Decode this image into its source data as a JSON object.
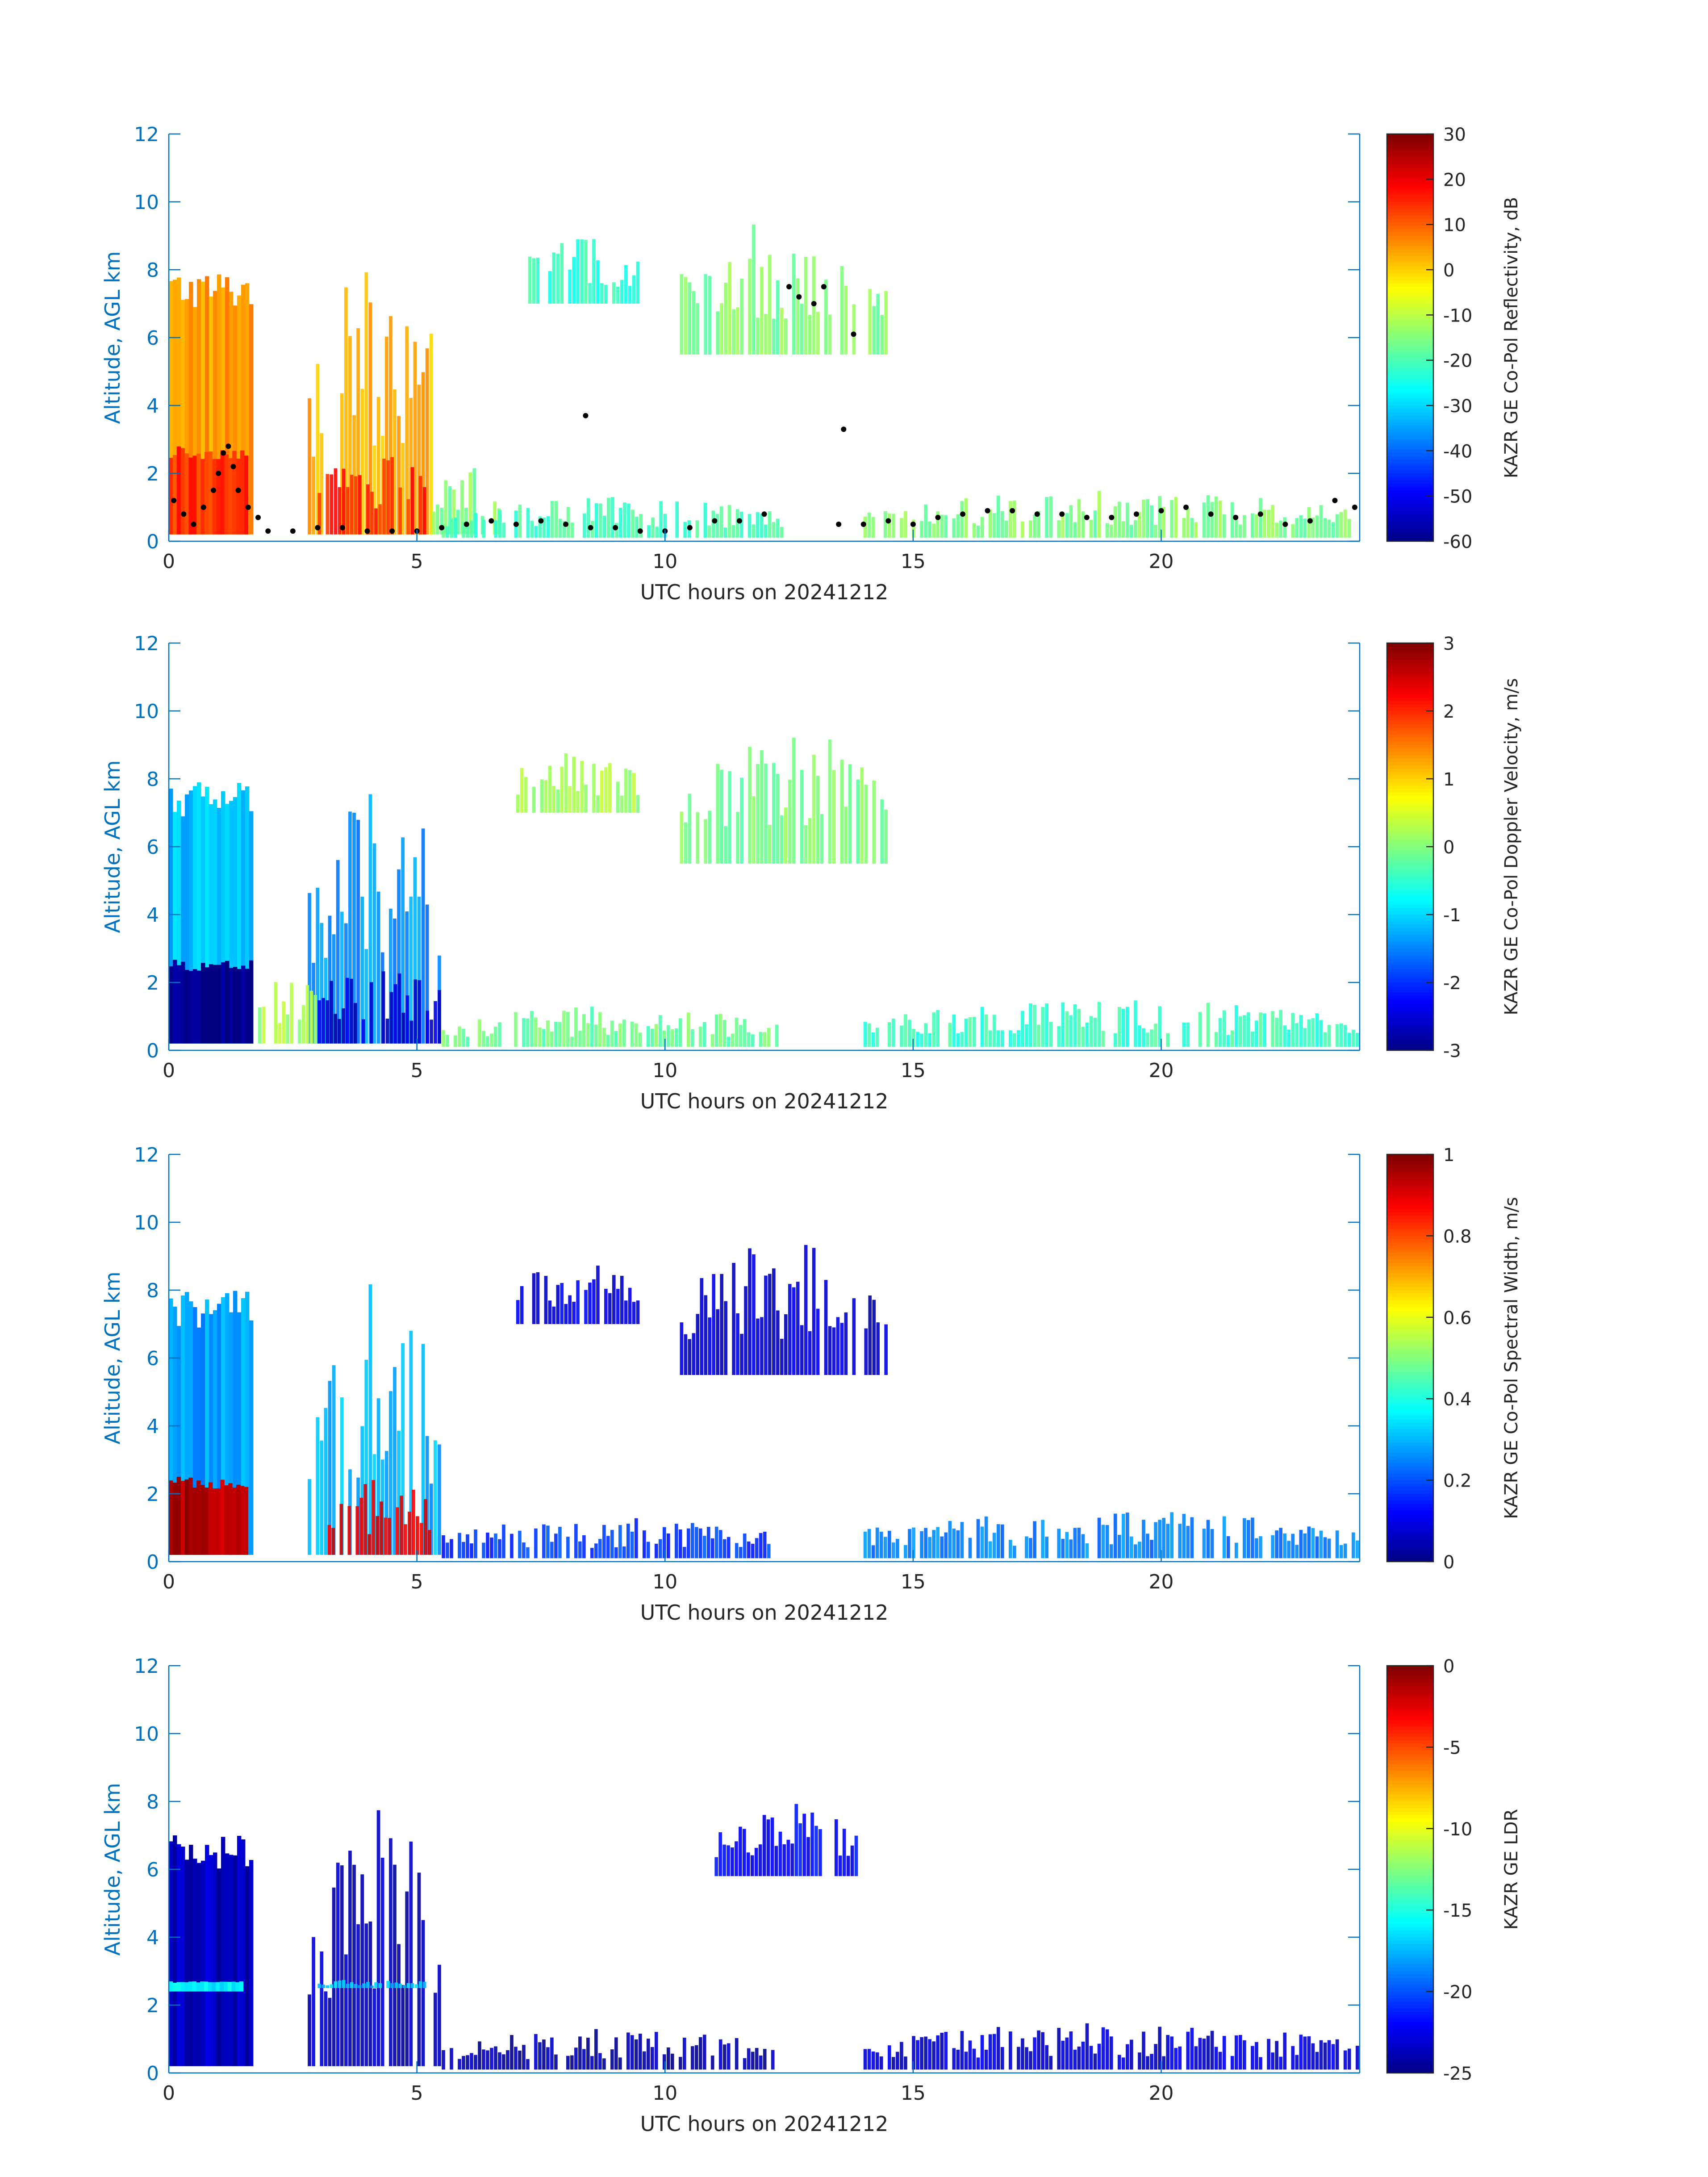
{
  "chart_data": [
    {
      "type": "heatmap",
      "xlabel": "UTC hours on 20241212",
      "ylabel": "Altitude, AGL km",
      "xlim": [
        0,
        24
      ],
      "ylim": [
        0,
        12
      ],
      "xticks": [
        "0",
        "5",
        "10",
        "15",
        "20"
      ],
      "yticks": [
        "0",
        "2",
        "4",
        "6",
        "8",
        "10",
        "12"
      ],
      "colorbar": {
        "label": "KAZR GE Co-Pol Reflectivity, dB",
        "range": [
          -60,
          30
        ],
        "ticks": [
          "30",
          "20",
          "10",
          "0",
          "-10",
          "-20",
          "-30",
          "-40",
          "-50",
          "-60"
        ],
        "colormap": "jet"
      },
      "regions": [
        {
          "x0": 0.0,
          "x1": 1.7,
          "y0": 0.2,
          "y1": 8.0,
          "value": 5,
          "dense": true
        },
        {
          "x0": 0.0,
          "x1": 1.6,
          "y0": 0.2,
          "y1": 2.8,
          "value": 14,
          "dense": true
        },
        {
          "x0": 2.8,
          "x1": 5.5,
          "y0": 0.2,
          "y1": 8.3,
          "value": 3,
          "dense": false
        },
        {
          "x0": 3.0,
          "x1": 5.2,
          "y0": 0.2,
          "y1": 2.8,
          "value": 16,
          "dense": false
        },
        {
          "x0": 5.3,
          "x1": 6.7,
          "y0": 0.2,
          "y1": 2.2,
          "value": -15,
          "dense": false
        },
        {
          "x0": 5.5,
          "x1": 12.4,
          "y0": 0.1,
          "y1": 1.3,
          "value": -20,
          "dense": false
        },
        {
          "x0": 7.0,
          "x1": 9.5,
          "y0": 7.0,
          "y1": 9.0,
          "value": -22,
          "dense": false
        },
        {
          "x0": 10.3,
          "x1": 14.5,
          "y0": 5.5,
          "y1": 9.5,
          "value": -15,
          "dense": false
        },
        {
          "x0": 14.0,
          "x1": 24.0,
          "y0": 0.1,
          "y1": 1.5,
          "value": -15,
          "dense": false
        }
      ],
      "points": [
        [
          0.1,
          1.2
        ],
        [
          0.3,
          0.8
        ],
        [
          0.5,
          0.5
        ],
        [
          0.7,
          1.0
        ],
        [
          0.9,
          1.5
        ],
        [
          1.0,
          2.0
        ],
        [
          1.1,
          2.6
        ],
        [
          1.2,
          2.8
        ],
        [
          1.3,
          2.2
        ],
        [
          1.4,
          1.5
        ],
        [
          1.6,
          1.0
        ],
        [
          1.8,
          0.7
        ],
        [
          2.0,
          0.3
        ],
        [
          2.5,
          0.3
        ],
        [
          3.0,
          0.4
        ],
        [
          3.5,
          0.4
        ],
        [
          4.0,
          0.3
        ],
        [
          4.5,
          0.3
        ],
        [
          5.0,
          0.3
        ],
        [
          5.5,
          0.4
        ],
        [
          6.0,
          0.5
        ],
        [
          6.5,
          0.6
        ],
        [
          7.0,
          0.5
        ],
        [
          7.5,
          0.6
        ],
        [
          8.0,
          0.5
        ],
        [
          8.4,
          3.7
        ],
        [
          8.5,
          0.4
        ],
        [
          9.0,
          0.4
        ],
        [
          9.5,
          0.3
        ],
        [
          10.0,
          0.3
        ],
        [
          10.5,
          0.4
        ],
        [
          11.0,
          0.6
        ],
        [
          11.5,
          0.6
        ],
        [
          12.0,
          0.8
        ],
        [
          12.5,
          7.5
        ],
        [
          12.7,
          7.2
        ],
        [
          13.0,
          7.0
        ],
        [
          13.2,
          7.5
        ],
        [
          13.5,
          0.5
        ],
        [
          13.6,
          3.3
        ],
        [
          13.8,
          6.1
        ],
        [
          14.0,
          0.5
        ],
        [
          14.5,
          0.6
        ],
        [
          15.0,
          0.5
        ],
        [
          15.5,
          0.7
        ],
        [
          16.0,
          0.8
        ],
        [
          16.5,
          0.9
        ],
        [
          17.0,
          0.9
        ],
        [
          17.5,
          0.8
        ],
        [
          18.0,
          0.8
        ],
        [
          18.5,
          0.7
        ],
        [
          19.0,
          0.7
        ],
        [
          19.5,
          0.8
        ],
        [
          20.0,
          0.9
        ],
        [
          20.5,
          1.0
        ],
        [
          21.0,
          0.8
        ],
        [
          21.5,
          0.7
        ],
        [
          22.0,
          0.8
        ],
        [
          22.5,
          0.5
        ],
        [
          23.0,
          0.6
        ],
        [
          23.5,
          1.2
        ],
        [
          23.9,
          1.0
        ]
      ]
    },
    {
      "type": "heatmap",
      "xlabel": "UTC hours on 20241212",
      "ylabel": "Altitude, AGL km",
      "xlim": [
        0,
        24
      ],
      "ylim": [
        0,
        12
      ],
      "xticks": [
        "0",
        "5",
        "10",
        "15",
        "20"
      ],
      "yticks": [
        "0",
        "2",
        "4",
        "6",
        "8",
        "10",
        "12"
      ],
      "colorbar": {
        "label": "KAZR GE Co-Pol Doppler Velocity, m/s",
        "range": [
          -3,
          3
        ],
        "ticks": [
          "3",
          "2",
          "1",
          "0",
          "-1",
          "-2",
          "-3"
        ],
        "colormap": "jet"
      },
      "regions": [
        {
          "x0": 0.0,
          "x1": 1.7,
          "y0": 0.2,
          "y1": 8.0,
          "value": -1.1,
          "dense": true
        },
        {
          "x0": 0.0,
          "x1": 1.7,
          "y0": 0.2,
          "y1": 2.7,
          "value": -3.0,
          "dense": true
        },
        {
          "x0": 2.8,
          "x1": 5.5,
          "y0": 0.2,
          "y1": 8.3,
          "value": -1.4,
          "dense": false
        },
        {
          "x0": 3.0,
          "x1": 5.5,
          "y0": 0.2,
          "y1": 2.8,
          "value": -2.6,
          "dense": false
        },
        {
          "x0": 1.8,
          "x1": 3.0,
          "y0": 0.2,
          "y1": 2.5,
          "value": 0.2,
          "dense": false
        },
        {
          "x0": 5.5,
          "x1": 12.3,
          "y0": 0.1,
          "y1": 1.3,
          "value": -0.1,
          "dense": false
        },
        {
          "x0": 7.0,
          "x1": 9.5,
          "y0": 7.0,
          "y1": 9.0,
          "value": 0.2,
          "dense": false
        },
        {
          "x0": 10.3,
          "x1": 14.5,
          "y0": 5.5,
          "y1": 9.5,
          "value": 0.0,
          "dense": false
        },
        {
          "x0": 14.0,
          "x1": 24.0,
          "y0": 0.1,
          "y1": 1.5,
          "value": -0.4,
          "dense": false
        }
      ]
    },
    {
      "type": "heatmap",
      "xlabel": "UTC hours on 20241212",
      "ylabel": "Altitude, AGL km",
      "xlim": [
        0,
        24
      ],
      "ylim": [
        0,
        12
      ],
      "xticks": [
        "0",
        "5",
        "10",
        "15",
        "20"
      ],
      "yticks": [
        "0",
        "2",
        "4",
        "6",
        "8",
        "10",
        "12"
      ],
      "colorbar": {
        "label": "KAZR GE Co-Pol Spectral Width, m/s",
        "range": [
          0,
          1
        ],
        "ticks": [
          "1",
          "0.8",
          "0.6",
          "0.4",
          "0.2",
          "0"
        ],
        "colormap": "jet"
      },
      "regions": [
        {
          "x0": 0.0,
          "x1": 1.7,
          "y0": 0.2,
          "y1": 8.0,
          "value": 0.28,
          "dense": true
        },
        {
          "x0": 0.0,
          "x1": 1.6,
          "y0": 0.2,
          "y1": 2.5,
          "value": 0.95,
          "dense": true
        },
        {
          "x0": 2.8,
          "x1": 5.5,
          "y0": 0.2,
          "y1": 8.3,
          "value": 0.3,
          "dense": false
        },
        {
          "x0": 3.2,
          "x1": 5.3,
          "y0": 0.2,
          "y1": 2.6,
          "value": 0.9,
          "dense": false
        },
        {
          "x0": 5.5,
          "x1": 12.3,
          "y0": 0.1,
          "y1": 1.3,
          "value": 0.18,
          "dense": false
        },
        {
          "x0": 7.0,
          "x1": 9.5,
          "y0": 7.0,
          "y1": 9.0,
          "value": 0.1,
          "dense": false
        },
        {
          "x0": 10.3,
          "x1": 14.5,
          "y0": 5.5,
          "y1": 9.5,
          "value": 0.08,
          "dense": false
        },
        {
          "x0": 14.0,
          "x1": 24.0,
          "y0": 0.1,
          "y1": 1.5,
          "value": 0.25,
          "dense": false
        }
      ]
    },
    {
      "type": "heatmap",
      "xlabel": "UTC hours on 20241212",
      "ylabel": "Altitude, AGL km",
      "xlim": [
        0,
        24
      ],
      "ylim": [
        0,
        12
      ],
      "xticks": [
        "0",
        "5",
        "10",
        "15",
        "20"
      ],
      "yticks": [
        "0",
        "2",
        "4",
        "6",
        "8",
        "10",
        "12"
      ],
      "colorbar": {
        "label": "KAZR GE LDR",
        "range": [
          -25,
          0
        ],
        "ticks": [
          "0",
          "-5",
          "-10",
          "-15",
          "-20",
          "-25"
        ],
        "colormap": "jet"
      },
      "regions": [
        {
          "x0": 0.0,
          "x1": 1.7,
          "y0": 0.2,
          "y1": 7.0,
          "value": -23.5,
          "dense": true
        },
        {
          "x0": 0.0,
          "x1": 1.5,
          "y0": 2.4,
          "y1": 2.7,
          "value": -16.0,
          "dense": true
        },
        {
          "x0": 2.8,
          "x1": 5.5,
          "y0": 0.2,
          "y1": 8.0,
          "value": -23.5,
          "dense": false
        },
        {
          "x0": 3.0,
          "x1": 5.2,
          "y0": 2.5,
          "y1": 2.8,
          "value": -17.0,
          "dense": false
        },
        {
          "x0": 5.5,
          "x1": 12.3,
          "y0": 0.1,
          "y1": 1.3,
          "value": -24.0,
          "dense": false
        },
        {
          "x0": 11.0,
          "x1": 13.9,
          "y0": 5.8,
          "y1": 8.0,
          "value": -22.0,
          "dense": false
        },
        {
          "x0": 14.0,
          "x1": 24.0,
          "y0": 0.1,
          "y1": 1.5,
          "value": -23.0,
          "dense": false
        }
      ]
    }
  ]
}
